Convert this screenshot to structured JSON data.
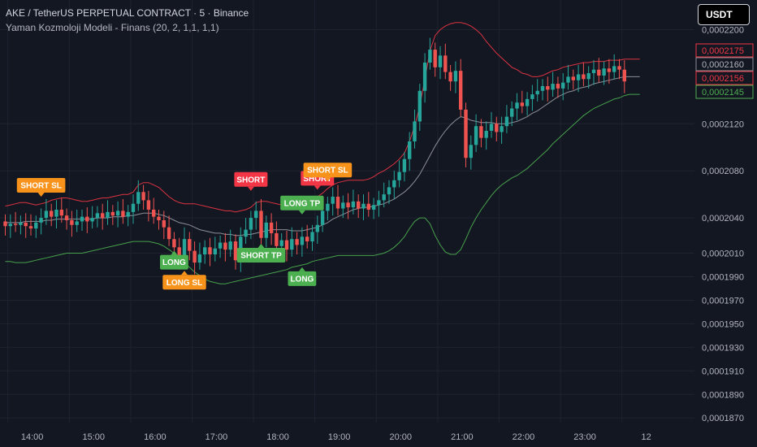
{
  "header": {
    "title": "AKE / TetherUS PERPETUAL CONTRACT · 5 · Binance",
    "subtitle": "Yaman Kozmoloji Modeli - Finans (20, 2, 1,1, 1,1)",
    "currency_button": "USDT"
  },
  "colors": {
    "background": "#131722",
    "grid": "#1f2330",
    "up": "#26a69a",
    "down": "#ef5350",
    "upper_band": "#f23645",
    "basis": "#8d8f97",
    "lower_band": "#4caf50",
    "orange": "#f7931a",
    "green_label": "#4caf50",
    "red_label": "#f23645"
  },
  "chart_data": {
    "type": "candlestick",
    "x_ticks": [
      "14:00",
      "15:00",
      "16:00",
      "17:00",
      "18:00",
      "19:00",
      "20:00",
      "21:00",
      "22:00",
      "23:00",
      "12"
    ],
    "x_tick_positions": [
      0.5,
      12.5,
      24.5,
      36.5,
      48.5,
      60.5,
      72.5,
      84.5,
      96.5,
      108.5,
      120.5
    ],
    "y_ticks": [
      "0,0002200",
      "0,0002120",
      "0,0002080",
      "0,0002040",
      "0,0002010",
      "0,0001990",
      "0,0001970",
      "0,0001950",
      "0,0001930",
      "0,0001910",
      "0,0001890",
      "0,0001870"
    ],
    "y_tick_values": [
      0.00022,
      0.000212,
      0.000208,
      0.000204,
      0.000201,
      0.000199,
      0.000197,
      0.000195,
      0.000193,
      0.000191,
      0.000189,
      0.000187
    ],
    "ylim": [
      0.0001866,
      0.00022252
    ],
    "price_labels": [
      {
        "text": "0,0002175",
        "value": 0.0002175,
        "kind": "upper"
      },
      {
        "text": "0,0002160",
        "value": 0.000216,
        "kind": "basis"
      },
      {
        "text": "0,0002156",
        "value": 0.0002156,
        "kind": "price"
      },
      {
        "text": "0,0002145",
        "value": 0.0002145,
        "kind": "lower"
      }
    ],
    "candles": [
      {
        "o": 0.0002037,
        "c": 0.0002033
      },
      {
        "o": 0.0002033,
        "c": 0.0002035
      },
      {
        "o": 0.0002035,
        "c": 0.0002034
      },
      {
        "o": 0.0002034,
        "c": 0.0002036
      },
      {
        "o": 0.0002036,
        "c": 0.0002033
      },
      {
        "o": 0.0002033,
        "c": 0.0002031
      },
      {
        "o": 0.0002031,
        "c": 0.0002036
      },
      {
        "o": 0.0002036,
        "c": 0.000204
      },
      {
        "o": 0.000204,
        "c": 0.0002046
      },
      {
        "o": 0.0002046,
        "c": 0.0002041
      },
      {
        "o": 0.0002041,
        "c": 0.0002047
      },
      {
        "o": 0.0002047,
        "c": 0.0002042
      },
      {
        "o": 0.0002042,
        "c": 0.0002038
      },
      {
        "o": 0.0002038,
        "c": 0.0002034
      },
      {
        "o": 0.0002034,
        "c": 0.0002037
      },
      {
        "o": 0.0002037,
        "c": 0.0002041
      },
      {
        "o": 0.0002041,
        "c": 0.0002037
      },
      {
        "o": 0.0002037,
        "c": 0.000204
      },
      {
        "o": 0.000204,
        "c": 0.0002044
      },
      {
        "o": 0.0002044,
        "c": 0.000204
      },
      {
        "o": 0.000204,
        "c": 0.0002045
      },
      {
        "o": 0.0002045,
        "c": 0.0002042
      },
      {
        "o": 0.0002042,
        "c": 0.0002046
      },
      {
        "o": 0.0002046,
        "c": 0.0002041
      },
      {
        "o": 0.0002041,
        "c": 0.0002045
      },
      {
        "o": 0.0002045,
        "c": 0.0002052
      },
      {
        "o": 0.0002052,
        "c": 0.0002062
      },
      {
        "o": 0.0002062,
        "c": 0.0002055
      },
      {
        "o": 0.0002055,
        "c": 0.0002047
      },
      {
        "o": 0.0002047,
        "c": 0.0002041
      },
      {
        "o": 0.0002041,
        "c": 0.0002038
      },
      {
        "o": 0.0002038,
        "c": 0.0002032
      },
      {
        "o": 0.0002032,
        "c": 0.0002022
      },
      {
        "o": 0.0002022,
        "c": 0.0002015
      },
      {
        "o": 0.0002015,
        "c": 0.0002006
      },
      {
        "o": 0.0002006,
        "c": 0.0002022
      },
      {
        "o": 0.0002022,
        "c": 0.0002012
      },
      {
        "o": 0.0002012,
        "c": 0.0002002
      },
      {
        "o": 0.0002002,
        "c": 0.0002009
      },
      {
        "o": 0.0002009,
        "c": 0.0002015
      },
      {
        "o": 0.0002015,
        "c": 0.0002009
      },
      {
        "o": 0.0002009,
        "c": 0.0002014
      },
      {
        "o": 0.0002014,
        "c": 0.0002019
      },
      {
        "o": 0.0002019,
        "c": 0.0002013
      },
      {
        "o": 0.0002013,
        "c": 0.000202
      },
      {
        "o": 0.000202,
        "c": 0.0002004
      },
      {
        "o": 0.0002004,
        "c": 0.0002024
      },
      {
        "o": 0.0002024,
        "c": 0.000203
      },
      {
        "o": 0.000203,
        "c": 0.000204
      },
      {
        "o": 0.000204,
        "c": 0.0002046
      },
      {
        "o": 0.0002046,
        "c": 0.0002023
      },
      {
        "o": 0.0002023,
        "c": 0.0002036
      },
      {
        "o": 0.0002036,
        "c": 0.0002027
      },
      {
        "o": 0.0002027,
        "c": 0.0002016
      },
      {
        "o": 0.0002016,
        "c": 0.0002021
      },
      {
        "o": 0.0002021,
        "c": 0.0002013
      },
      {
        "o": 0.0002013,
        "c": 0.0002022
      },
      {
        "o": 0.0002022,
        "c": 0.0002017
      },
      {
        "o": 0.0002017,
        "c": 0.0002024
      },
      {
        "o": 0.0002024,
        "c": 0.000202
      },
      {
        "o": 0.000202,
        "c": 0.0002028
      },
      {
        "o": 0.0002028,
        "c": 0.0002034
      },
      {
        "o": 0.0002034,
        "c": 0.0002046
      },
      {
        "o": 0.0002046,
        "c": 0.0002052
      },
      {
        "o": 0.0002052,
        "c": 0.0002058
      },
      {
        "o": 0.0002058,
        "c": 0.0002048
      },
      {
        "o": 0.0002048,
        "c": 0.0002053
      },
      {
        "o": 0.0002053,
        "c": 0.0002049
      },
      {
        "o": 0.0002049,
        "c": 0.0002054
      },
      {
        "o": 0.0002054,
        "c": 0.0002048
      },
      {
        "o": 0.0002048,
        "c": 0.0002052
      },
      {
        "o": 0.0002052,
        "c": 0.0002047
      },
      {
        "o": 0.0002047,
        "c": 0.0002051
      },
      {
        "o": 0.0002051,
        "c": 0.0002055
      },
      {
        "o": 0.0002055,
        "c": 0.000206
      },
      {
        "o": 0.000206,
        "c": 0.0002066
      },
      {
        "o": 0.0002066,
        "c": 0.0002072
      },
      {
        "o": 0.0002072,
        "c": 0.0002079
      },
      {
        "o": 0.0002079,
        "c": 0.000209
      },
      {
        "o": 0.000209,
        "c": 0.0002105
      },
      {
        "o": 0.0002105,
        "c": 0.0002122
      },
      {
        "o": 0.0002122,
        "c": 0.0002148
      },
      {
        "o": 0.0002148,
        "c": 0.0002172
      },
      {
        "o": 0.0002172,
        "c": 0.0002183
      },
      {
        "o": 0.0002183,
        "c": 0.0002168
      },
      {
        "o": 0.0002168,
        "c": 0.0002178
      },
      {
        "o": 0.0002178,
        "c": 0.0002164
      },
      {
        "o": 0.0002164,
        "c": 0.0002156
      },
      {
        "o": 0.0002156,
        "c": 0.0002165
      },
      {
        "o": 0.0002165,
        "c": 0.0002132
      },
      {
        "o": 0.0002132,
        "c": 0.0002091
      },
      {
        "o": 0.0002091,
        "c": 0.0002102
      },
      {
        "o": 0.0002102,
        "c": 0.0002118
      },
      {
        "o": 0.0002118,
        "c": 0.0002108
      },
      {
        "o": 0.0002108,
        "c": 0.0002114
      },
      {
        "o": 0.0002114,
        "c": 0.000212
      },
      {
        "o": 0.000212,
        "c": 0.0002113
      },
      {
        "o": 0.0002113,
        "c": 0.0002118
      },
      {
        "o": 0.0002118,
        "c": 0.0002126
      },
      {
        "o": 0.0002126,
        "c": 0.0002133
      },
      {
        "o": 0.0002133,
        "c": 0.0002138
      },
      {
        "o": 0.0002138,
        "c": 0.0002135
      },
      {
        "o": 0.0002135,
        "c": 0.0002141
      },
      {
        "o": 0.0002141,
        "c": 0.0002145
      },
      {
        "o": 0.0002145,
        "c": 0.0002148
      },
      {
        "o": 0.0002148,
        "c": 0.0002152
      },
      {
        "o": 0.0002152,
        "c": 0.0002149
      },
      {
        "o": 0.0002149,
        "c": 0.0002154
      },
      {
        "o": 0.0002154,
        "c": 0.000215
      },
      {
        "o": 0.000215,
        "c": 0.0002155
      },
      {
        "o": 0.0002155,
        "c": 0.000216
      },
      {
        "o": 0.000216,
        "c": 0.0002157
      },
      {
        "o": 0.0002157,
        "c": 0.0002162
      },
      {
        "o": 0.0002162,
        "c": 0.0002158
      },
      {
        "o": 0.0002158,
        "c": 0.0002163
      },
      {
        "o": 0.0002163,
        "c": 0.0002166
      },
      {
        "o": 0.0002166,
        "c": 0.0002161
      },
      {
        "o": 0.0002161,
        "c": 0.0002167
      },
      {
        "o": 0.0002167,
        "c": 0.0002164
      },
      {
        "o": 0.0002164,
        "c": 0.0002169
      },
      {
        "o": 0.0002169,
        "c": 0.0002166
      },
      {
        "o": 0.0002166,
        "c": 0.0002156
      }
    ],
    "upper_band": [
      0.000205,
      0.0002051,
      0.0002052,
      0.0002053,
      0.0002053,
      0.0002052,
      0.0002051,
      0.0002052,
      0.0002053,
      0.0002055,
      0.0002056,
      0.0002057,
      0.0002057,
      0.0002056,
      0.0002055,
      0.0002054,
      0.0002054,
      0.0002055,
      0.0002056,
      0.0002057,
      0.0002057,
      0.0002058,
      0.0002059,
      0.000206,
      0.000206,
      0.0002062,
      0.0002068,
      0.000207,
      0.000207,
      0.0002068,
      0.0002066,
      0.0002062,
      0.0002058,
      0.0002055,
      0.0002053,
      0.0002052,
      0.0002052,
      0.0002052,
      0.0002051,
      0.000205,
      0.0002049,
      0.0002048,
      0.0002047,
      0.0002046,
      0.0002046,
      0.0002045,
      0.0002046,
      0.0002047,
      0.0002049,
      0.0002053,
      0.0002054,
      0.0002054,
      0.0002053,
      0.0002052,
      0.0002051,
      0.000205,
      0.0002049,
      0.0002049,
      0.000205,
      0.0002053,
      0.0002056,
      0.0002058,
      0.0002061,
      0.0002065,
      0.0002068,
      0.000207,
      0.0002071,
      0.0002072,
      0.0002072,
      0.0002072,
      0.0002072,
      0.0002073,
      0.0002075,
      0.0002078,
      0.000208,
      0.0002083,
      0.0002086,
      0.000209,
      0.0002095,
      0.0002105,
      0.0002118,
      0.0002135,
      0.0002158,
      0.0002182,
      0.0002195,
      0.00022,
      0.0002203,
      0.0002205,
      0.0002206,
      0.0002206,
      0.0002205,
      0.0002203,
      0.00022,
      0.0002196,
      0.000219,
      0.0002185,
      0.000218,
      0.0002176,
      0.0002172,
      0.0002168,
      0.0002166,
      0.0002163,
      0.0002162,
      0.000216,
      0.000216,
      0.0002161,
      0.0002163,
      0.0002165,
      0.0002166,
      0.0002168,
      0.0002169,
      0.000217,
      0.0002171,
      0.0002172,
      0.0002172,
      0.0002173,
      0.0002173,
      0.0002173,
      0.0002174,
      0.0002174,
      0.0002174,
      0.0002175,
      0.0002175,
      0.0002175,
      0.0002175
    ],
    "basis": [
      0.0002036,
      0.0002036,
      0.0002036,
      0.0002036,
      0.0002037,
      0.0002037,
      0.0002037,
      0.0002037,
      0.0002038,
      0.0002038,
      0.0002039,
      0.0002039,
      0.0002039,
      0.0002039,
      0.0002039,
      0.0002039,
      0.0002039,
      0.0002039,
      0.000204,
      0.000204,
      0.000204,
      0.0002041,
      0.0002041,
      0.0002041,
      0.0002042,
      0.0002042,
      0.0002043,
      0.0002044,
      0.0002044,
      0.0002044,
      0.0002043,
      0.0002042,
      0.000204,
      0.0002038,
      0.0002036,
      0.0002035,
      0.0002034,
      0.0002032,
      0.000203,
      0.0002029,
      0.0002028,
      0.0002027,
      0.0002027,
      0.0002026,
      0.0002026,
      0.0002025,
      0.0002025,
      0.0002026,
      0.0002026,
      0.0002027,
      0.0002028,
      0.0002029,
      0.000203,
      0.000203,
      0.000203,
      0.000203,
      0.0002029,
      0.0002029,
      0.0002029,
      0.000203,
      0.0002031,
      0.0002032,
      0.0002034,
      0.0002036,
      0.0002039,
      0.0002041,
      0.0002043,
      0.0002045,
      0.0002047,
      0.0002048,
      0.0002049,
      0.0002049,
      0.000205,
      0.0002051,
      0.0002052,
      0.0002054,
      0.0002056,
      0.0002059,
      0.0002062,
      0.0002066,
      0.0002071,
      0.0002077,
      0.0002085,
      0.0002093,
      0.0002101,
      0.0002108,
      0.0002114,
      0.0002119,
      0.0002123,
      0.0002126,
      0.0002125,
      0.0002123,
      0.0002122,
      0.0002121,
      0.0002121,
      0.0002121,
      0.000212,
      0.000212,
      0.000212,
      0.0002121,
      0.0002122,
      0.0002124,
      0.0002126,
      0.0002129,
      0.0002131,
      0.0002134,
      0.0002137,
      0.000214,
      0.0002143,
      0.0002145,
      0.0002147,
      0.0002148,
      0.000215,
      0.0002151,
      0.0002152,
      0.0002154,
      0.0002155,
      0.0002156,
      0.0002157,
      0.0002158,
      0.0002159,
      0.000216,
      0.000216,
      0.000216,
      0.000216
    ],
    "lower_band": [
      0.0002003,
      0.0002003,
      0.0002002,
      0.0002002,
      0.0002002,
      0.0002003,
      0.0002004,
      0.0002005,
      0.0002006,
      0.0002007,
      0.0002008,
      0.0002009,
      0.000201,
      0.000201,
      0.000201,
      0.000201,
      0.0002011,
      0.0002012,
      0.0002013,
      0.0002014,
      0.0002015,
      0.0002016,
      0.0002017,
      0.0002018,
      0.0002019,
      0.000202,
      0.000202,
      0.000202,
      0.000202,
      0.0002019,
      0.0002018,
      0.0002016,
      0.0002013,
      0.000201,
      0.0002006,
      0.0002002,
      0.0001998,
      0.0001994,
      0.0001991,
      0.0001988,
      0.0001986,
      0.0001985,
      0.0001984,
      0.0001984,
      0.0001985,
      0.0001986,
      0.0001987,
      0.0001988,
      0.0001989,
      0.000199,
      0.0001991,
      0.0001992,
      0.0001993,
      0.0001994,
      0.0001995,
      0.0001996,
      0.0001998,
      0.0001999,
      0.0002,
      0.0002001,
      0.0002003,
      0.0002004,
      0.0002005,
      0.0002006,
      0.0002007,
      0.0002008,
      0.0002008,
      0.0002008,
      0.0002008,
      0.0002008,
      0.0002008,
      0.0002008,
      0.0002008,
      0.0002009,
      0.000201,
      0.0002012,
      0.0002015,
      0.0002019,
      0.0002024,
      0.0002031,
      0.0002037,
      0.000204,
      0.000204,
      0.0002035,
      0.0002025,
      0.0002017,
      0.0002011,
      0.0002009,
      0.0002009,
      0.0002013,
      0.0002022,
      0.0002032,
      0.000204,
      0.0002047,
      0.0002053,
      0.0002059,
      0.0002064,
      0.0002068,
      0.0002071,
      0.0002074,
      0.0002076,
      0.0002079,
      0.0002082,
      0.0002086,
      0.000209,
      0.0002094,
      0.0002098,
      0.0002103,
      0.0002107,
      0.0002111,
      0.0002115,
      0.0002119,
      0.0002123,
      0.0002127,
      0.000213,
      0.0002133,
      0.0002135,
      0.0002137,
      0.0002139,
      0.0002141,
      0.0002142,
      0.0002144,
      0.0002145,
      0.0002145,
      0.0002145
    ],
    "signals": [
      {
        "label": "SHORT SL",
        "bar": 7,
        "color": "orange",
        "dir": "down",
        "value": 0.0002058
      },
      {
        "label": "LONG",
        "bar": 33,
        "color": "green",
        "dir": "up",
        "value": 0.0002012
      },
      {
        "label": "LONG SL",
        "bar": 35,
        "color": "orange",
        "dir": "up",
        "value": 0.0001995
      },
      {
        "label": "SHORT",
        "bar": 48,
        "color": "red",
        "dir": "down",
        "value": 0.0002063
      },
      {
        "label": "SHORT TP",
        "bar": 50,
        "color": "green",
        "dir": "up",
        "value": 0.0002018
      },
      {
        "label": "LONG TP",
        "bar": 58,
        "color": "green",
        "dir": "down",
        "value": 0.0002043
      },
      {
        "label": "LONG",
        "bar": 58,
        "color": "green",
        "dir": "up",
        "value": 0.0001998
      },
      {
        "label": "SHORT",
        "bar": 61,
        "color": "red",
        "dir": "down",
        "value": 0.0002064
      },
      {
        "label": "SHORT SL",
        "bar": 63,
        "color": "orange",
        "dir": "down",
        "value": 0.0002071
      }
    ]
  }
}
